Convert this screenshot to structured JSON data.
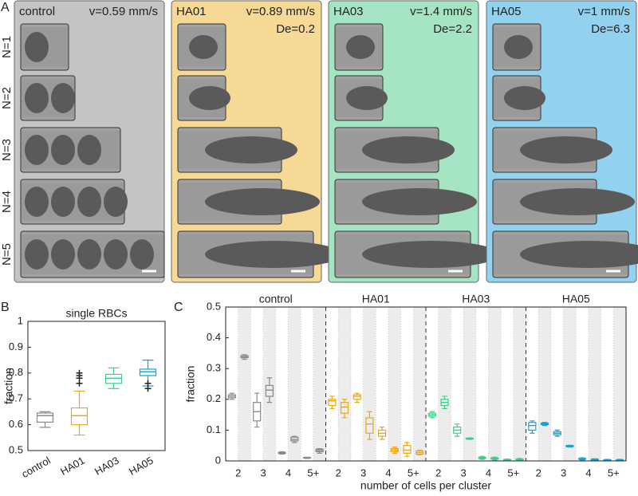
{
  "panel_a": {
    "label": "A",
    "rows": [
      "N=1",
      "N=2",
      "N=3",
      "N=4",
      "N=5"
    ],
    "columns": [
      {
        "name": "control",
        "velocity": "v=0.59 mm/s"
      },
      {
        "name": "HA01",
        "velocity": "v=0.89 mm/s",
        "deborah": "De=0.2"
      },
      {
        "name": "HA03",
        "velocity": "v=1.4 mm/s",
        "deborah": "De=2.2"
      },
      {
        "name": "HA05",
        "velocity": "v=1 mm/s",
        "deborah": "De=6.3"
      }
    ]
  },
  "chart_data": [
    {
      "type": "box",
      "panel_label": "B",
      "title": "single RBCs",
      "ylabel": "fraction",
      "categories": [
        "control",
        "HA01",
        "HA03",
        "HA05"
      ],
      "colors": [
        "#8a8a8a",
        "#e8a820",
        "#3dcf8a",
        "#1aa3cf"
      ],
      "boxes": [
        {
          "min": 0.59,
          "q1": 0.61,
          "median": 0.635,
          "q3": 0.645,
          "max": 0.65
        },
        {
          "min": 0.56,
          "q1": 0.6,
          "median": 0.635,
          "q3": 0.665,
          "max": 0.73,
          "outliers": [
            0.76,
            0.78,
            0.79,
            0.8
          ]
        },
        {
          "min": 0.74,
          "q1": 0.76,
          "median": 0.78,
          "q3": 0.795,
          "max": 0.82
        },
        {
          "min": 0.75,
          "q1": 0.79,
          "median": 0.805,
          "q3": 0.815,
          "max": 0.85,
          "outliers": [
            0.74,
            0.76
          ]
        }
      ],
      "ylim": [
        0.5,
        1
      ],
      "yticks": [
        0.5,
        0.6,
        0.7,
        0.8,
        0.9,
        1
      ]
    },
    {
      "type": "grouped-box",
      "panel_label": "C",
      "ylabel": "fraction",
      "xlabel": "number of cells per cluster",
      "categories": [
        "2",
        "3",
        "4",
        "5+"
      ],
      "groups": [
        {
          "name": "control",
          "color": "#8a8a8a",
          "boxes": [
            {
              "min": 0.2,
              "q1": 0.205,
              "median": 0.21,
              "q3": 0.215,
              "max": 0.22
            },
            {
              "min": 0.33,
              "q1": 0.335,
              "median": 0.338,
              "q3": 0.342,
              "max": 0.345
            },
            {
              "min": 0.11,
              "q1": 0.13,
              "median": 0.16,
              "q3": 0.19,
              "max": 0.22
            },
            {
              "min": 0.19,
              "q1": 0.21,
              "median": 0.23,
              "q3": 0.245,
              "max": 0.27
            },
            {
              "min": 0.022,
              "q1": 0.024,
              "median": 0.026,
              "q3": 0.028,
              "max": 0.03
            },
            {
              "min": 0.06,
              "q1": 0.065,
              "median": 0.07,
              "q3": 0.077,
              "max": 0.08
            },
            {
              "min": 0.008,
              "q1": 0.009,
              "median": 0.01,
              "q3": 0.011,
              "max": 0.012
            },
            {
              "min": 0.025,
              "q1": 0.03,
              "median": 0.034,
              "q3": 0.038,
              "max": 0.04
            }
          ]
        },
        {
          "name": "HA01",
          "color": "#e8a820",
          "boxes": [
            {
              "min": 0.17,
              "q1": 0.18,
              "median": 0.195,
              "q3": 0.2,
              "max": 0.21
            },
            {
              "min": 0.14,
              "q1": 0.155,
              "median": 0.175,
              "q3": 0.19,
              "max": 0.2
            },
            {
              "min": 0.19,
              "q1": 0.2,
              "median": 0.21,
              "q3": 0.215,
              "max": 0.22
            },
            {
              "min": 0.07,
              "q1": 0.09,
              "median": 0.12,
              "q3": 0.14,
              "max": 0.16
            },
            {
              "min": 0.07,
              "q1": 0.08,
              "median": 0.09,
              "q3": 0.1,
              "max": 0.11
            },
            {
              "min": 0.025,
              "q1": 0.03,
              "median": 0.035,
              "q3": 0.04,
              "max": 0.045
            },
            {
              "min": 0.015,
              "q1": 0.025,
              "median": 0.035,
              "q3": 0.05,
              "max": 0.06
            },
            {
              "min": 0.02,
              "q1": 0.022,
              "median": 0.027,
              "q3": 0.032,
              "max": 0.035
            }
          ]
        },
        {
          "name": "HA03",
          "color": "#3dcf8a",
          "boxes": [
            {
              "min": 0.14,
              "q1": 0.145,
              "median": 0.15,
              "q3": 0.155,
              "max": 0.16
            },
            {
              "min": 0.17,
              "q1": 0.18,
              "median": 0.19,
              "q3": 0.2,
              "max": 0.21
            },
            {
              "min": 0.08,
              "q1": 0.09,
              "median": 0.1,
              "q3": 0.11,
              "max": 0.12
            },
            {
              "min": 0.07,
              "q1": 0.071,
              "median": 0.072,
              "q3": 0.074,
              "max": 0.075
            },
            {
              "min": 0.005,
              "q1": 0.008,
              "median": 0.01,
              "q3": 0.012,
              "max": 0.015
            },
            {
              "min": 0.003,
              "q1": 0.006,
              "median": 0.008,
              "q3": 0.01,
              "max": 0.012
            },
            {
              "min": 0.002,
              "q1": 0.003,
              "median": 0.004,
              "q3": 0.005,
              "max": 0.006
            },
            {
              "min": 0.002,
              "q1": 0.003,
              "median": 0.004,
              "q3": 0.006,
              "max": 0.008
            }
          ]
        },
        {
          "name": "HA05",
          "color": "#1aa3cf",
          "boxes": [
            {
              "min": 0.09,
              "q1": 0.1,
              "median": 0.115,
              "q3": 0.125,
              "max": 0.13
            },
            {
              "min": 0.115,
              "q1": 0.118,
              "median": 0.12,
              "q3": 0.123,
              "max": 0.125
            },
            {
              "min": 0.08,
              "q1": 0.085,
              "median": 0.09,
              "q3": 0.095,
              "max": 0.1
            },
            {
              "min": 0.045,
              "q1": 0.046,
              "median": 0.048,
              "q3": 0.05,
              "max": 0.051
            },
            {
              "min": 0.003,
              "q1": 0.005,
              "median": 0.007,
              "q3": 0.008,
              "max": 0.01
            },
            {
              "min": 0.002,
              "q1": 0.003,
              "median": 0.005,
              "q3": 0.006,
              "max": 0.007
            },
            {
              "min": 0.001,
              "q1": 0.002,
              "median": 0.003,
              "q3": 0.004,
              "max": 0.005
            },
            {
              "min": 0.001,
              "q1": 0.002,
              "median": 0.003,
              "q3": 0.004,
              "max": 0.005
            }
          ]
        }
      ],
      "ylim": [
        0,
        0.5
      ],
      "yticks": [
        0,
        0.1,
        0.2,
        0.3,
        0.4,
        0.5
      ]
    }
  ]
}
